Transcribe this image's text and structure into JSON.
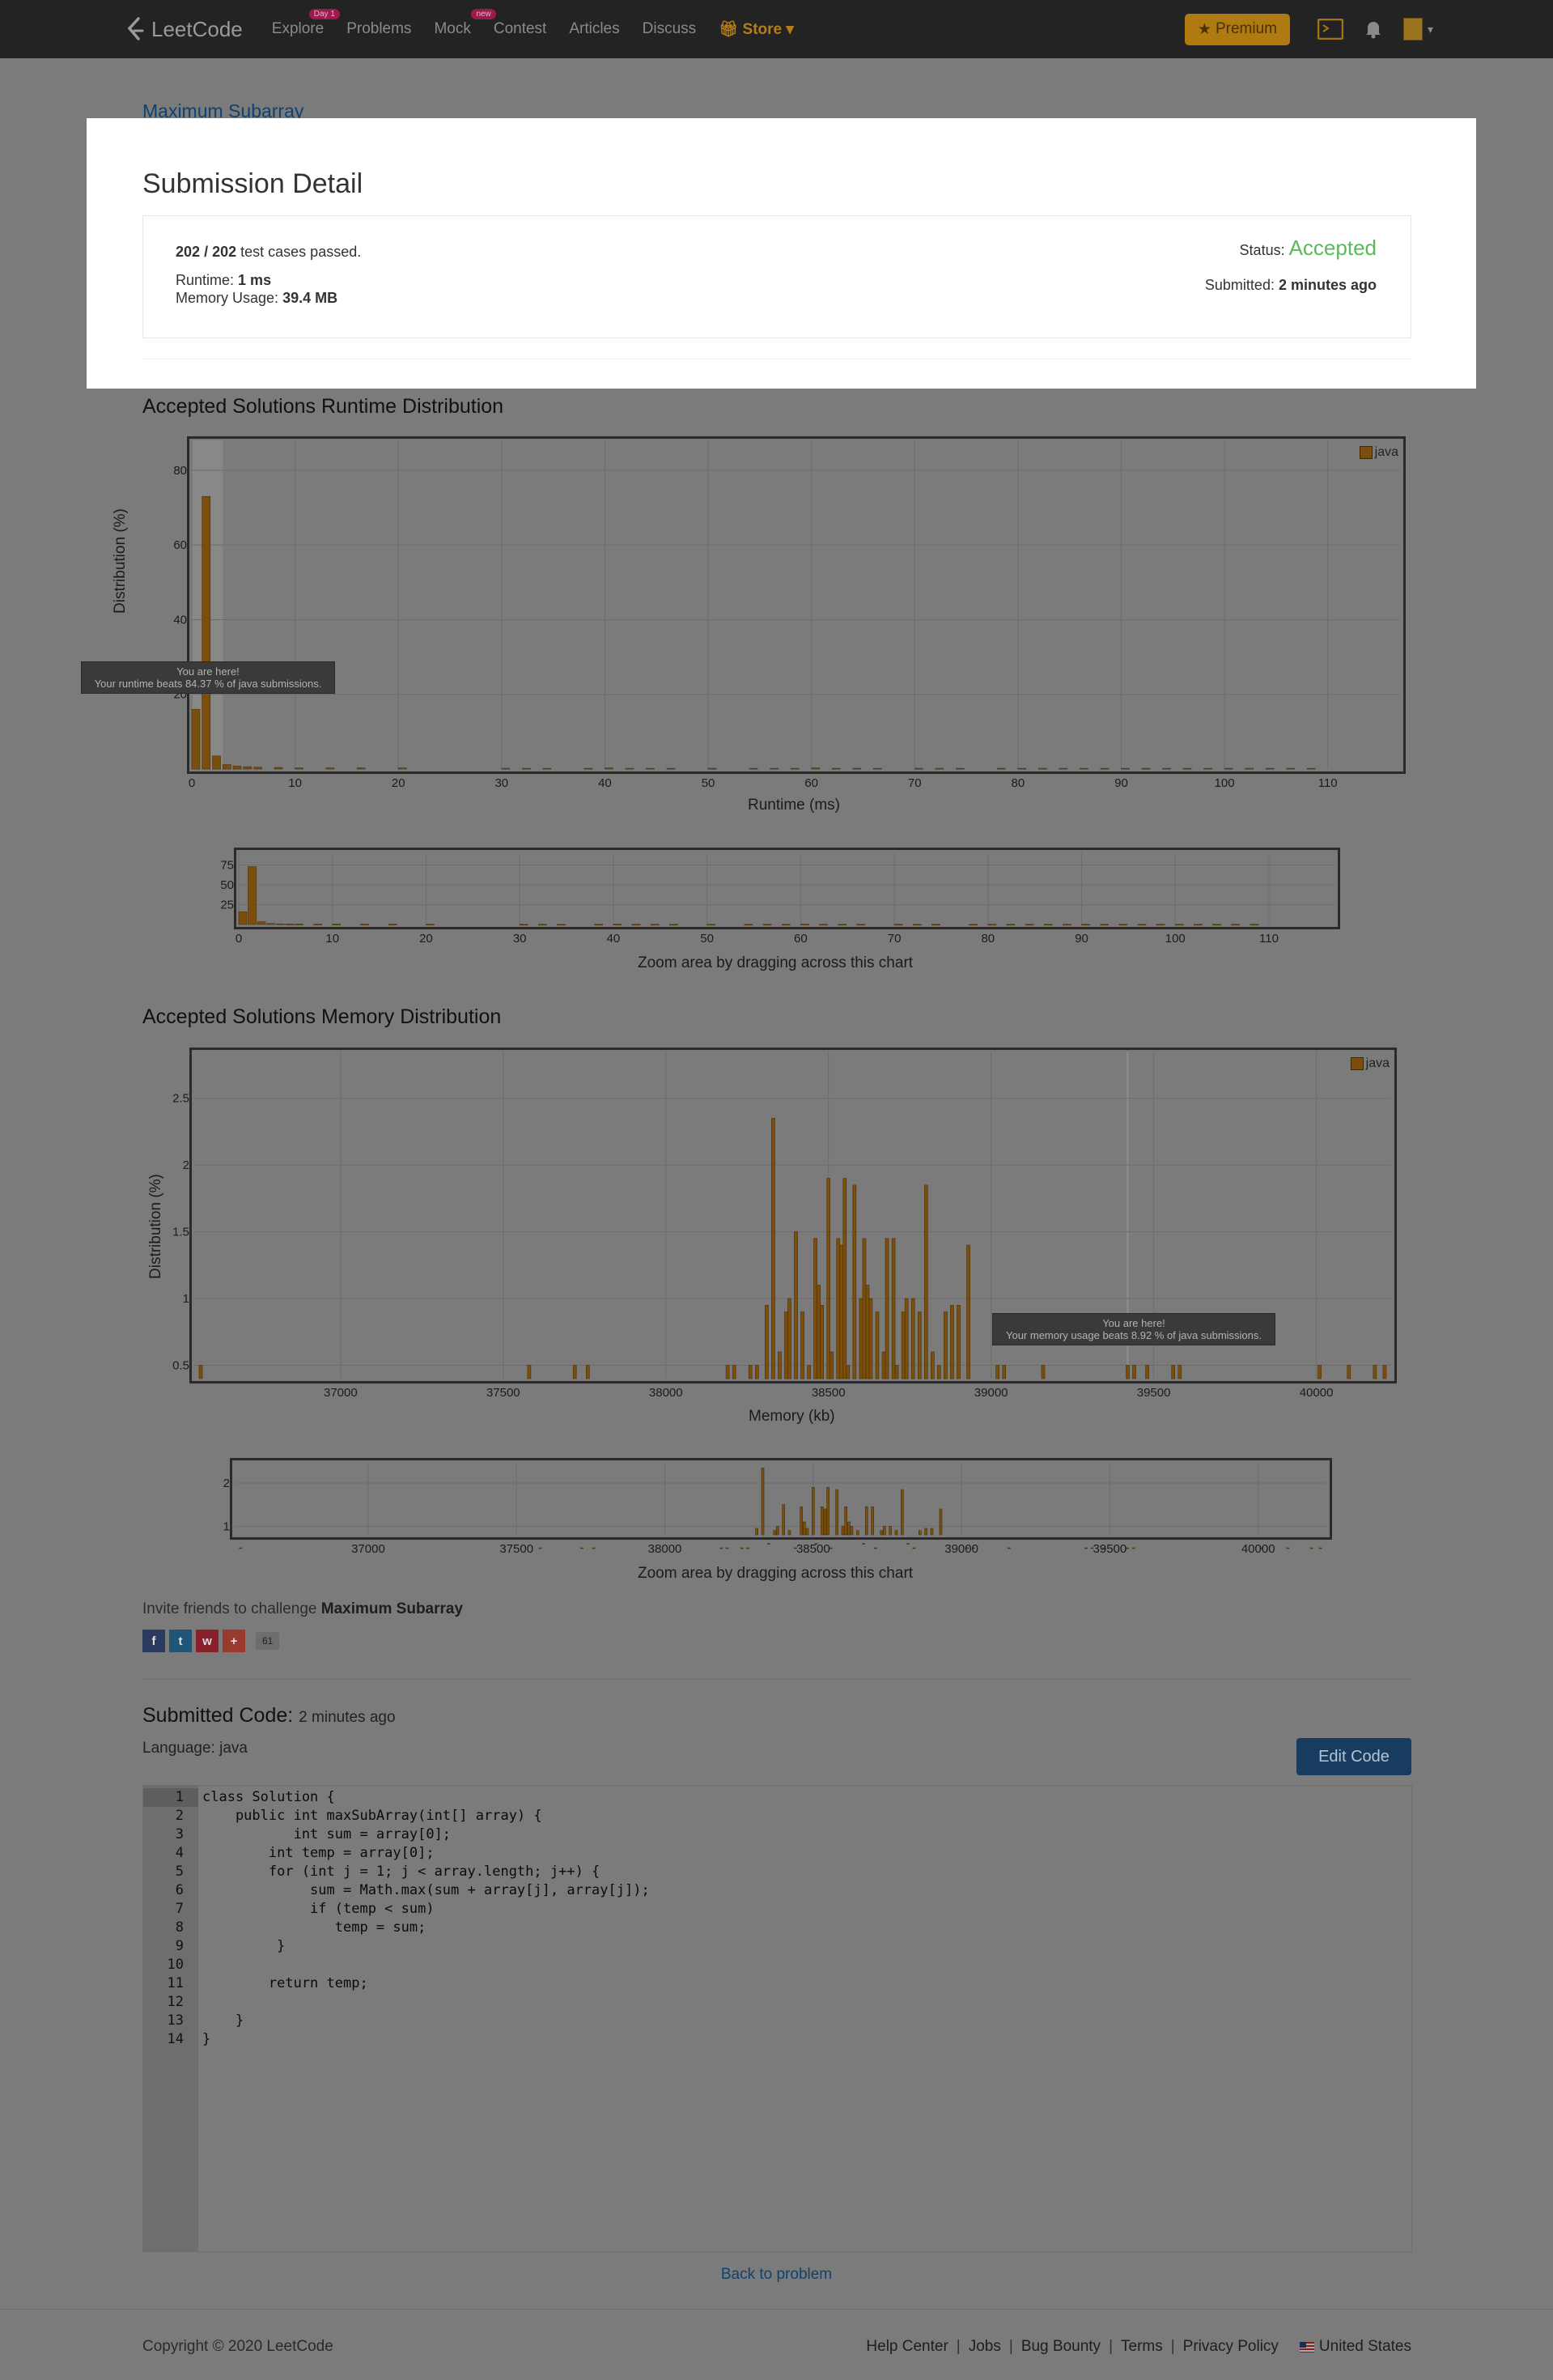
{
  "nav": {
    "logo": "LeetCode",
    "items": [
      {
        "label": "Explore",
        "badge": "Day 1"
      },
      {
        "label": "Problems",
        "badge": ""
      },
      {
        "label": "Mock",
        "badge": "new"
      },
      {
        "label": "Contest",
        "badge": ""
      },
      {
        "label": "Articles",
        "badge": ""
      },
      {
        "label": "Discuss",
        "badge": ""
      }
    ],
    "store": "Store",
    "premium": "Premium"
  },
  "breadcrumb": "Maximum Subarray",
  "submission": {
    "title": "Submission Detail",
    "passed": "202",
    "total": "202",
    "passed_suffix": "test cases passed.",
    "runtime_label": "Runtime:",
    "runtime_value": "1 ms",
    "memory_label": "Memory Usage:",
    "memory_value": "39.4 MB",
    "status_label": "Status:",
    "status_value": "Accepted",
    "submitted_label": "Submitted:",
    "submitted_value": "2 minutes ago"
  },
  "runtime_section": {
    "title": "Accepted Solutions Runtime Distribution",
    "ylabel": "Distribution (%)",
    "xlabel": "Runtime (ms)",
    "legend": "java",
    "tooltip_line1": "You are here!",
    "tooltip_line2": "Your runtime beats 84.37 % of java submissions.",
    "zoom_label": "Zoom area by dragging across this chart"
  },
  "memory_section": {
    "title": "Accepted Solutions Memory Distribution",
    "ylabel": "Distribution (%)",
    "xlabel": "Memory (kb)",
    "legend": "java",
    "tooltip_line1": "You are here!",
    "tooltip_line2": "Your memory usage beats 8.92 % of java submissions.",
    "zoom_label": "Zoom area by dragging across this chart"
  },
  "chart_data": [
    {
      "type": "bar",
      "title": "Accepted Solutions Runtime Distribution",
      "xlabel": "Runtime (ms)",
      "ylabel": "Distribution (%)",
      "xlim": [
        0,
        117
      ],
      "ylim": [
        0,
        88
      ],
      "xticks": [
        0,
        10,
        20,
        30,
        40,
        50,
        60,
        70,
        80,
        90,
        100,
        110
      ],
      "yticks": [
        20,
        40,
        60,
        80
      ],
      "grid": true,
      "legend_position": "top-right",
      "series": [
        {
          "name": "java",
          "color": "#7a4f0d",
          "x": [
            0,
            1,
            2,
            3,
            4,
            5,
            6,
            8,
            10,
            13,
            16,
            20,
            30,
            32,
            34,
            38,
            40,
            42,
            44,
            46,
            50,
            54,
            56,
            58,
            60,
            62,
            64,
            66,
            70,
            72,
            74,
            78,
            80,
            82,
            84,
            86,
            88,
            90,
            92,
            94,
            96,
            98,
            100,
            102,
            104,
            106,
            108
          ],
          "values": [
            16,
            73,
            3.5,
            1.2,
            0.8,
            0.6,
            0.5,
            0.4,
            0.3,
            0.3,
            0.3,
            0.3,
            0.2,
            0.2,
            0.2,
            0.2,
            0.3,
            0.2,
            0.2,
            0.2,
            0.2,
            0.2,
            0.2,
            0.2,
            0.3,
            0.2,
            0.2,
            0.2,
            0.2,
            0.2,
            0.2,
            0.2,
            0.2,
            0.2,
            0.2,
            0.2,
            0.2,
            0.2,
            0.2,
            0.2,
            0.2,
            0.2,
            0.2,
            0.2,
            0.2,
            0.2,
            0.2
          ]
        }
      ],
      "highlight_range": [
        0,
        3
      ]
    },
    {
      "type": "bar",
      "title": "Accepted Solutions Memory Distribution",
      "xlabel": "Memory (kb)",
      "ylabel": "Distribution (%)",
      "xlim": [
        36550,
        40230
      ],
      "ylim": [
        0.4,
        2.85
      ],
      "xticks": [
        37000,
        37500,
        38000,
        38500,
        39000,
        39500,
        40000
      ],
      "yticks": [
        0.5,
        1.0,
        1.5,
        2.0,
        2.5
      ],
      "grid": true,
      "legend_position": "top-right",
      "series": [
        {
          "name": "java",
          "color": "#7a4f0d",
          "x": [
            36570,
            37580,
            37720,
            37760,
            38190,
            38210,
            38260,
            38280,
            38310,
            38330,
            38350,
            38370,
            38380,
            38400,
            38420,
            38440,
            38460,
            38470,
            38480,
            38500,
            38510,
            38530,
            38540,
            38550,
            38560,
            38580,
            38600,
            38610,
            38620,
            38630,
            38650,
            38670,
            38680,
            38700,
            38710,
            38730,
            38740,
            38760,
            38780,
            38800,
            38820,
            38840,
            38860,
            38880,
            38900,
            38930,
            39020,
            39040,
            39160,
            39420,
            39440,
            39480,
            39560,
            39580,
            40010,
            40100,
            40180,
            40210
          ],
          "values": [
            0.5,
            0.5,
            0.5,
            0.5,
            0.5,
            0.5,
            0.5,
            0.5,
            0.95,
            2.35,
            0.6,
            0.9,
            1.0,
            1.5,
            0.9,
            0.5,
            1.45,
            1.1,
            0.95,
            1.9,
            0.6,
            1.45,
            1.4,
            1.9,
            0.5,
            1.85,
            1.0,
            1.45,
            1.1,
            1.0,
            0.9,
            0.6,
            1.45,
            1.45,
            0.5,
            0.9,
            1.0,
            1.0,
            0.9,
            1.85,
            0.6,
            0.5,
            0.9,
            0.95,
            0.95,
            1.4,
            0.5,
            0.5,
            0.5,
            0.5,
            0.5,
            0.5,
            0.5,
            0.5,
            0.5,
            0.5,
            0.5,
            0.5
          ]
        }
      ],
      "highlight_x": 39420
    }
  ],
  "invite": {
    "text": "Invite friends to challenge",
    "problem": "Maximum Subarray",
    "share_count": "61"
  },
  "code": {
    "title": "Submitted Code:",
    "time": "2 minutes ago",
    "language": "Language: java",
    "edit": "Edit Code",
    "lines": [
      "class Solution {",
      "    public int maxSubArray(int[] array) {",
      "           int sum = array[0];",
      "        int temp = array[0];",
      "        for (int j = 1; j < array.length; j++) {",
      "             sum = Math.max(sum + array[j], array[j]);",
      "             if (temp < sum)",
      "                temp = sum;",
      "         }",
      "",
      "        return temp;",
      "",
      "    }",
      "}"
    ]
  },
  "back_link": "Back to problem",
  "footer": {
    "copyright": "Copyright © 2020 LeetCode",
    "links": [
      "Help Center",
      "Jobs",
      "Bug Bounty",
      "Terms",
      "Privacy Policy"
    ],
    "region": "United States"
  }
}
